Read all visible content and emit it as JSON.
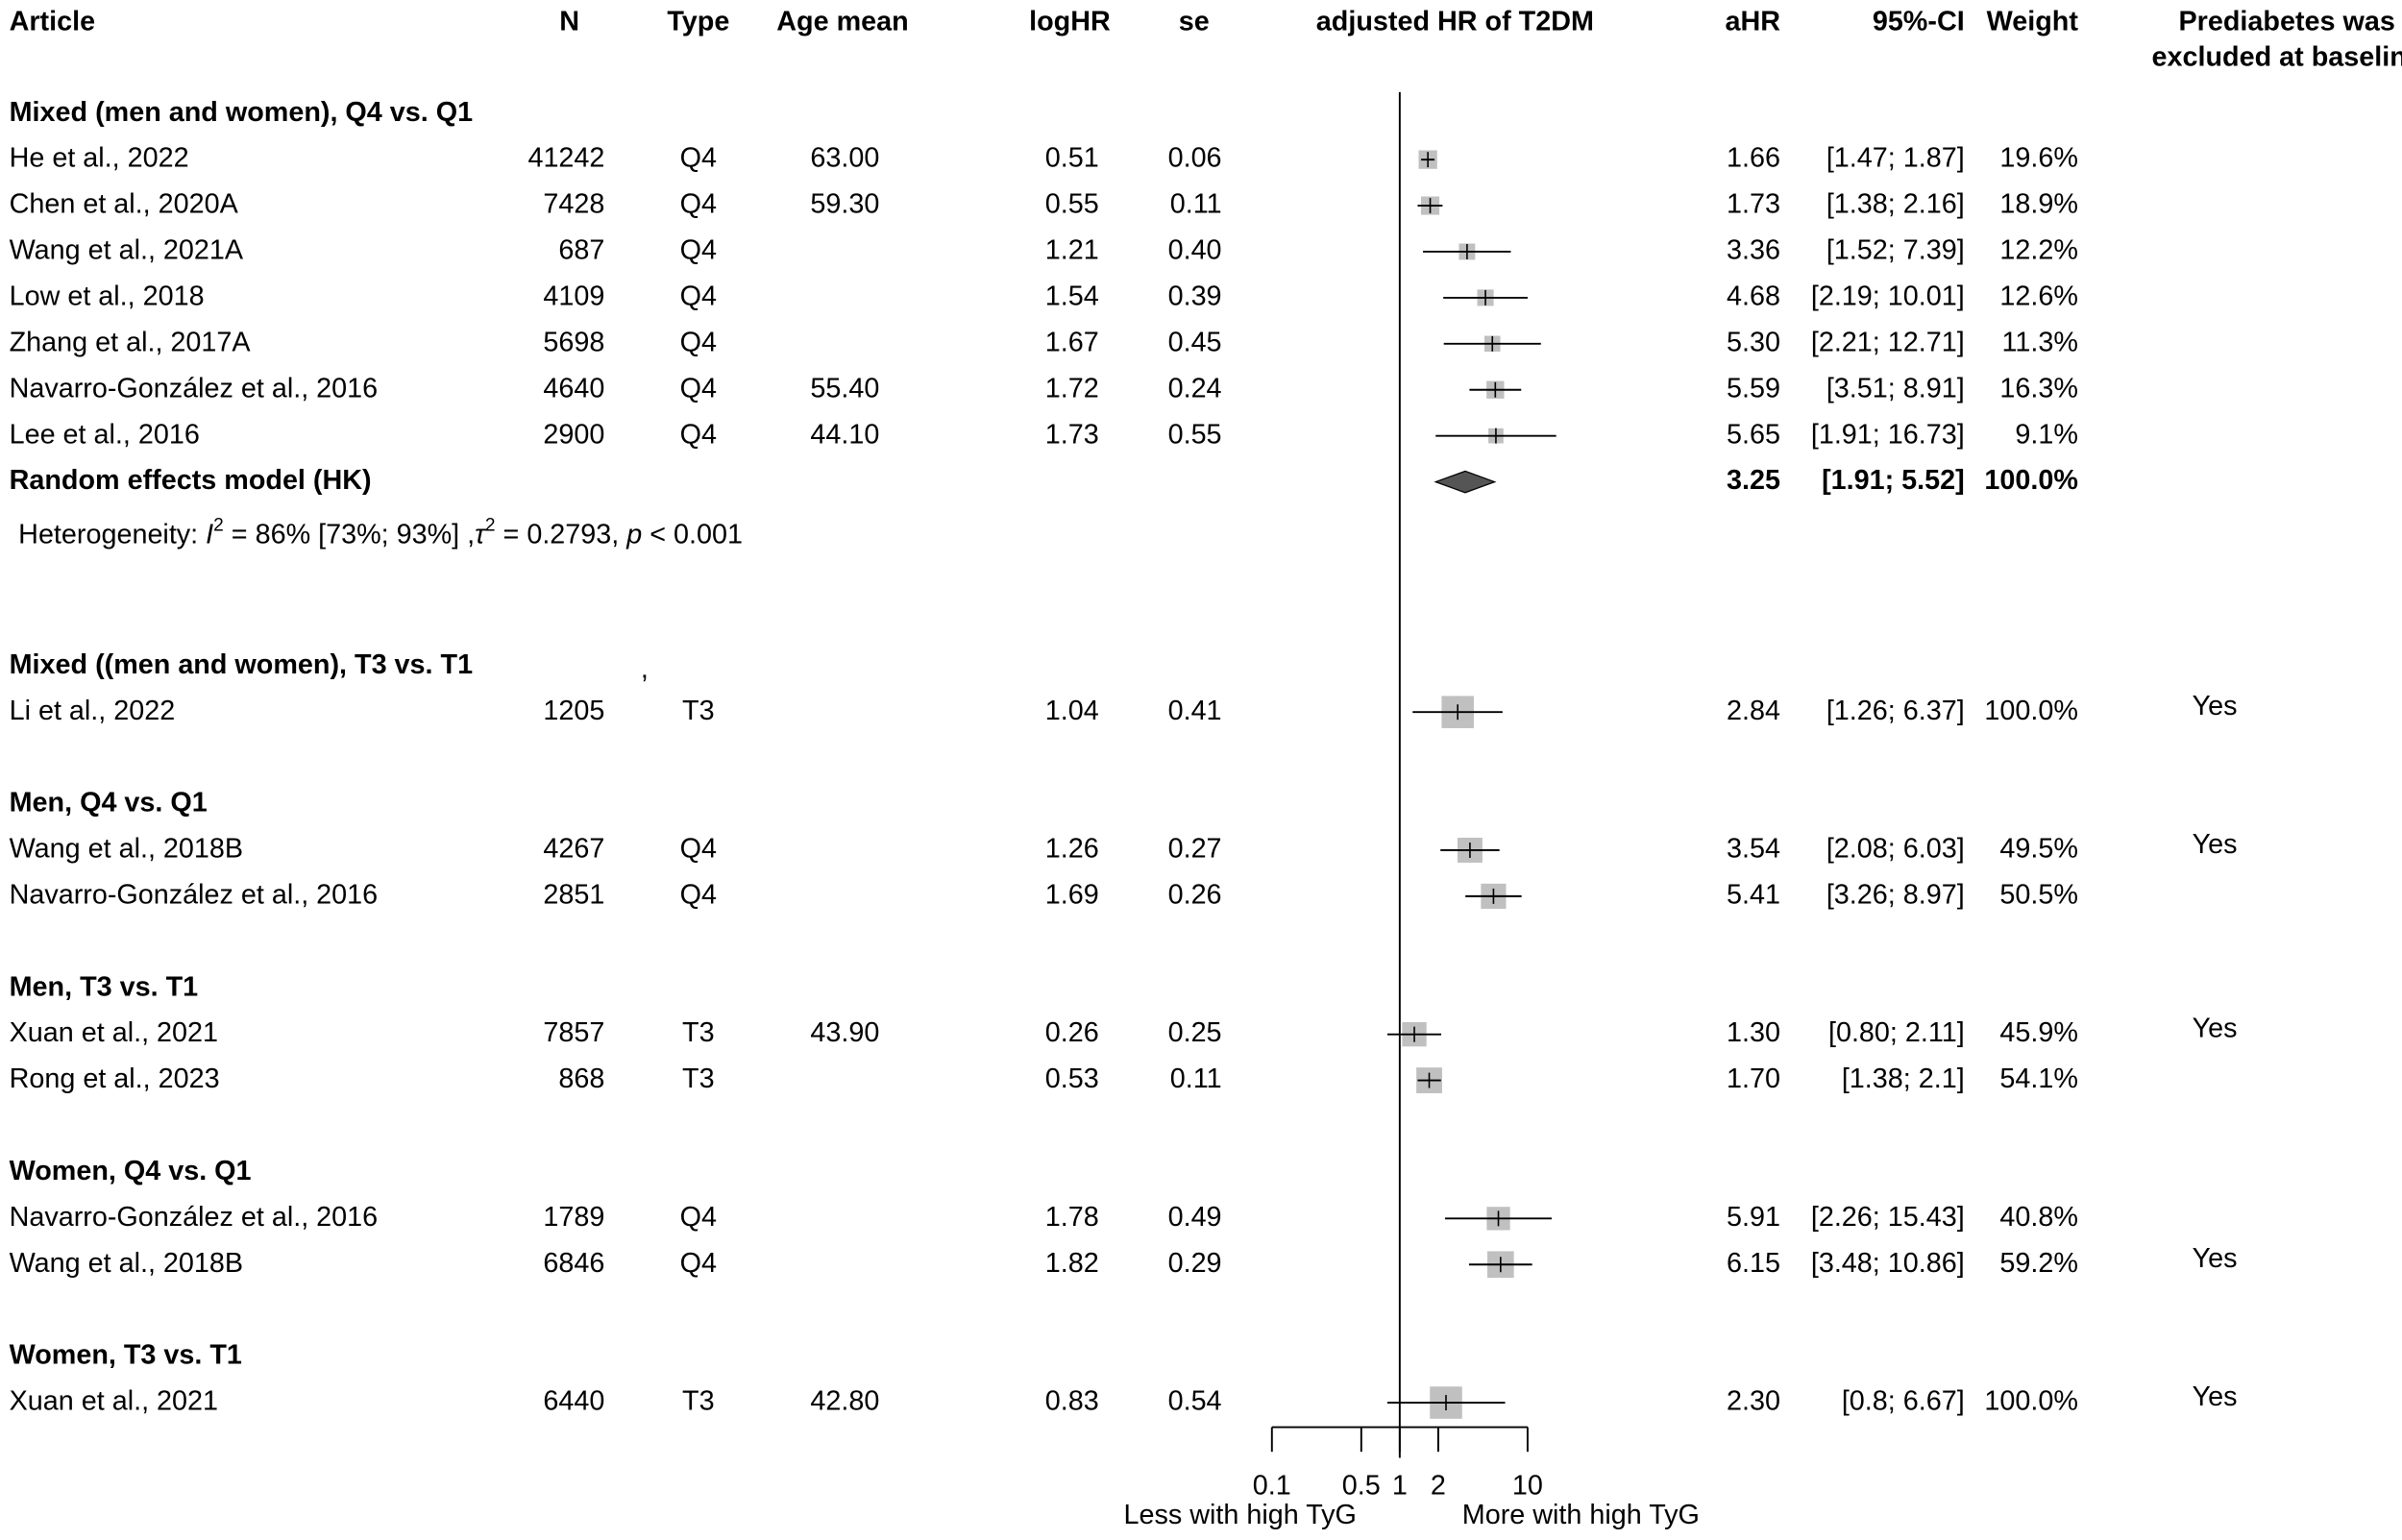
{
  "chart_data": {
    "type": "forest",
    "title": "adjusted HR of T2DM",
    "x_scale": "log",
    "x_ticks": [
      "0.1",
      "0.5",
      "1",
      "2",
      "10"
    ],
    "x_tick_values": [
      0.1,
      0.5,
      1,
      2,
      10
    ],
    "reference_line": 1,
    "xlabel_left": "Less with high TyG",
    "xlabel_right": "More with high TyG",
    "colors": {
      "square": "#c0c0c0",
      "diamond": "#555555",
      "line": "#000000"
    },
    "columns": {
      "article": "Article",
      "n": "N",
      "type": "Type",
      "age": "Age mean",
      "loghr": "logHR",
      "se": "se",
      "plot": "adjusted HR of T2DM",
      "ahr": "aHR",
      "ci": "95%-CI",
      "weight": "Weight",
      "prediabetes_1": "Prediabetes was",
      "prediabetes_2": "excluded at baseline"
    },
    "stray_mark": ",",
    "groups": [
      {
        "title": "Mixed (men and women), Q4 vs. Q1",
        "studies": [
          {
            "article": "He et al., 2022",
            "n": "41242",
            "type": "Q4",
            "age": "63.00",
            "loghr": "0.51",
            "se": "0.06",
            "hr": 1.66,
            "lower": 1.47,
            "upper": 1.87,
            "ahr": "1.66",
            "ci": "[1.47;  1.87]",
            "weight": "19.6%",
            "weight_value": 19.6,
            "prediabetes": ""
          },
          {
            "article": "Chen et al., 2020A",
            "n": "7428",
            "type": "Q4",
            "age": "59.30",
            "loghr": "0.55",
            "se": "0.11",
            "hr": 1.73,
            "lower": 1.38,
            "upper": 2.16,
            "ahr": "1.73",
            "ci": "[1.38;  2.16]",
            "weight": "18.9%",
            "weight_value": 18.9,
            "prediabetes": ""
          },
          {
            "article": "Wang et al., 2021A",
            "n": "687",
            "type": "Q4",
            "age": "",
            "loghr": "1.21",
            "se": "0.40",
            "hr": 3.36,
            "lower": 1.52,
            "upper": 7.39,
            "ahr": "3.36",
            "ci": "[1.52;  7.39]",
            "weight": "12.2%",
            "weight_value": 12.2,
            "prediabetes": ""
          },
          {
            "article": "Low et al., 2018",
            "n": "4109",
            "type": "Q4",
            "age": "",
            "loghr": "1.54",
            "se": "0.39",
            "hr": 4.68,
            "lower": 2.19,
            "upper": 10.01,
            "ahr": "4.68",
            "ci": "[2.19; 10.01]",
            "weight": "12.6%",
            "weight_value": 12.6,
            "prediabetes": ""
          },
          {
            "article": "Zhang et al., 2017A",
            "n": "5698",
            "type": "Q4",
            "age": "",
            "loghr": "1.67",
            "se": "0.45",
            "hr": 5.3,
            "lower": 2.21,
            "upper": 12.71,
            "ahr": "5.30",
            "ci": "[2.21; 12.71]",
            "weight": "11.3%",
            "weight_value": 11.3,
            "prediabetes": ""
          },
          {
            "article": "Navarro-González et al., 2016",
            "n": "4640",
            "type": "Q4",
            "age": "55.40",
            "loghr": "1.72",
            "se": "0.24",
            "hr": 5.59,
            "lower": 3.51,
            "upper": 8.91,
            "ahr": "5.59",
            "ci": "[3.51;  8.91]",
            "weight": "16.3%",
            "weight_value": 16.3,
            "prediabetes": ""
          },
          {
            "article": "Lee et al., 2016",
            "n": "2900",
            "type": "Q4",
            "age": "44.10",
            "loghr": "1.73",
            "se": "0.55",
            "hr": 5.65,
            "lower": 1.91,
            "upper": 16.73,
            "ahr": "5.65",
            "ci": "[1.91; 16.73]",
            "weight": "9.1%",
            "weight_value": 9.1,
            "prediabetes": ""
          }
        ],
        "pooled": {
          "label": "Random effects model (HK)",
          "hr": 3.25,
          "lower": 1.91,
          "upper": 5.52,
          "ahr": "3.25",
          "ci": "[1.91;  5.52]",
          "weight": "100.0%"
        },
        "heterogeneity": {
          "prefix": "Heterogeneity: ",
          "i": "I",
          "sup1": "2",
          "mid": " = 86% [73%; 93%] ,",
          "tau": "τ",
          "sup2": "2",
          "mid2": " = 0.2793, ",
          "p": "p",
          "end": " < 0.001"
        }
      },
      {
        "title": "Mixed ((men and women), T3 vs. T1",
        "studies": [
          {
            "article": "Li et al., 2022",
            "n": "1205",
            "type": "T3",
            "age": "",
            "loghr": "1.04",
            "se": "0.41",
            "hr": 2.84,
            "lower": 1.26,
            "upper": 6.37,
            "ahr": "2.84",
            "ci": "[1.26;  6.37]",
            "weight": "100.0%",
            "weight_value": 100,
            "prediabetes": "Yes"
          }
        ]
      },
      {
        "title": "Men, Q4 vs. Q1",
        "studies": [
          {
            "article": "Wang et al., 2018B",
            "n": "4267",
            "type": "Q4",
            "age": "",
            "loghr": "1.26",
            "se": "0.27",
            "hr": 3.54,
            "lower": 2.08,
            "upper": 6.03,
            "ahr": "3.54",
            "ci": "[2.08;  6.03]",
            "weight": "49.5%",
            "weight_value": 49.5,
            "prediabetes": "Yes"
          },
          {
            "article": "Navarro-González et al., 2016",
            "n": "2851",
            "type": "Q4",
            "age": "",
            "loghr": "1.69",
            "se": "0.26",
            "hr": 5.41,
            "lower": 3.26,
            "upper": 8.97,
            "ahr": "5.41",
            "ci": "[3.26;  8.97]",
            "weight": "50.5%",
            "weight_value": 50.5,
            "prediabetes": ""
          }
        ]
      },
      {
        "title": "Men, T3 vs. T1",
        "studies": [
          {
            "article": " Xuan et al., 2021",
            "n": "7857",
            "type": "T3",
            "age": "43.90",
            "loghr": "0.26",
            "se": "0.25",
            "hr": 1.3,
            "lower": 0.8,
            "upper": 2.11,
            "ahr": "1.30",
            "ci": "[0.80;  2.11]",
            "weight": "45.9%",
            "weight_value": 45.9,
            "prediabetes": "Yes"
          },
          {
            "article": "Rong et al., 2023",
            "n": "868",
            "type": "T3",
            "age": "",
            "loghr": "0.53",
            "se": "0.11",
            "hr": 1.7,
            "lower": 1.38,
            "upper": 2.1,
            "ahr": "1.70",
            "ci": "[1.38;  2.1]",
            "weight": "54.1%",
            "weight_value": 54.1,
            "prediabetes": ""
          }
        ]
      },
      {
        "title": "Women, Q4 vs. Q1",
        "studies": [
          {
            "article": "Navarro-González et al., 2016",
            "n": "1789",
            "type": "Q4",
            "age": "",
            "loghr": "1.78",
            "se": "0.49",
            "hr": 5.91,
            "lower": 2.26,
            "upper": 15.43,
            "ahr": "5.91",
            "ci": "[2.26; 15.43]",
            "weight": "40.8%",
            "weight_value": 40.8,
            "prediabetes": ""
          },
          {
            "article": "Wang et al., 2018B",
            "n": "6846",
            "type": "Q4",
            "age": "",
            "loghr": "1.82",
            "se": "0.29",
            "hr": 6.15,
            "lower": 3.48,
            "upper": 10.86,
            "ahr": "6.15",
            "ci": "[3.48; 10.86]",
            "weight": "59.2%",
            "weight_value": 59.2,
            "prediabetes": "Yes"
          }
        ]
      },
      {
        "title": "Women, T3 vs. T1",
        "studies": [
          {
            "article": "Xuan et al., 2021",
            "n": "6440",
            "type": "T3",
            "age": "42.80",
            "loghr": "0.83",
            "se": "0.54",
            "hr": 2.3,
            "lower": 0.8,
            "upper": 6.67,
            "ahr": "2.30",
            "ci": "[0.8;  6.67]",
            "weight": "100.0%",
            "weight_value": 100,
            "prediabetes": "Yes"
          }
        ]
      }
    ]
  }
}
